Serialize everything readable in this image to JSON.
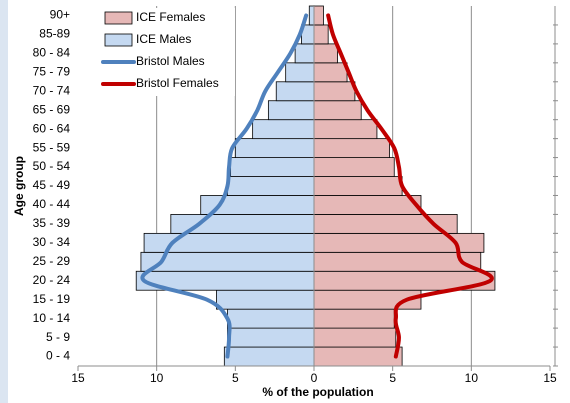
{
  "chart_data": {
    "type": "pyramid",
    "x_label": "% of the population",
    "y_label": "Age group",
    "categories": [
      "0 - 4",
      "5 - 9",
      "10 - 14",
      "15 - 19",
      "20 - 24",
      "25 - 29",
      "30 - 34",
      "35 - 39",
      "40 - 44",
      "45 - 49",
      "50 - 54",
      "55 - 59",
      "60 - 64",
      "65 - 69",
      "70 - 74",
      "75 - 79",
      "80 - 84",
      "85-89",
      "90+"
    ],
    "series": [
      {
        "name": "ICE Females",
        "kind": "bar",
        "color": "#e6b8b7",
        "values": [
          5.6,
          5.2,
          5.1,
          6.8,
          11.5,
          10.6,
          10.8,
          9.1,
          6.8,
          5.6,
          5.1,
          4.8,
          4.0,
          3.0,
          2.6,
          2.1,
          1.5,
          0.9,
          0.6
        ]
      },
      {
        "name": "ICE Males",
        "kind": "bar",
        "color": "#c5d9f1",
        "values": [
          -5.7,
          -5.5,
          -5.5,
          -6.2,
          -11.3,
          -11.0,
          -10.8,
          -9.1,
          -7.2,
          -5.5,
          -5.3,
          -5.0,
          -3.9,
          -2.9,
          -2.4,
          -1.8,
          -1.2,
          -0.8,
          -0.3
        ]
      },
      {
        "name": "Bristol Males",
        "kind": "line",
        "color": "#4f81bd",
        "values": [
          -5.5,
          -5.4,
          -5.5,
          -6.8,
          -10.8,
          -9.7,
          -9.0,
          -7.3,
          -6.0,
          -5.5,
          -5.4,
          -5.2,
          -4.3,
          -3.6,
          -3.1,
          -2.3,
          -1.5,
          -0.9,
          -0.5
        ]
      },
      {
        "name": "Bristol Females",
        "kind": "line",
        "color": "#c00000",
        "values": [
          5.2,
          5.4,
          5.2,
          5.9,
          11.2,
          9.4,
          9.0,
          7.6,
          6.5,
          5.6,
          5.4,
          5.1,
          4.3,
          3.4,
          2.7,
          2.2,
          1.7,
          1.2,
          0.9
        ]
      }
    ],
    "xlim": [
      -15,
      15
    ],
    "xticks": [
      {
        "value": -15,
        "label": "15"
      },
      {
        "value": -10,
        "label": "10"
      },
      {
        "value": -5,
        "label": "5"
      },
      0,
      5,
      10,
      15
    ],
    "grid": true
  }
}
